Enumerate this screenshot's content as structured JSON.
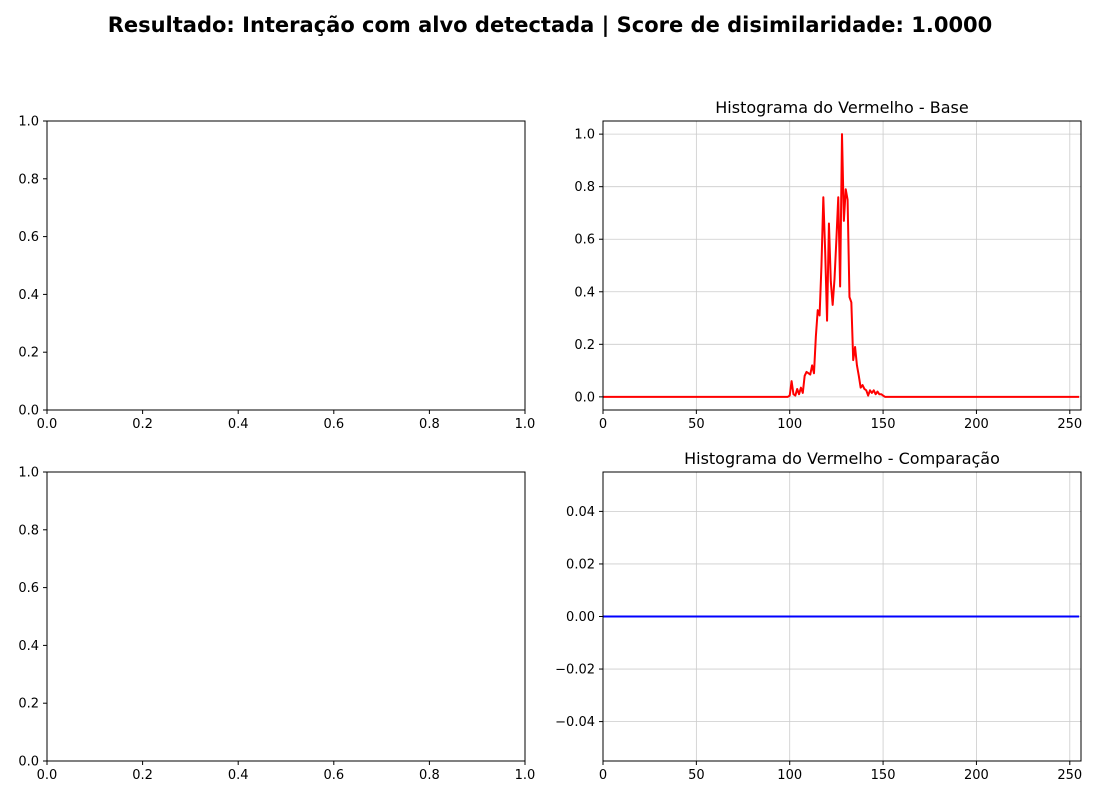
{
  "figure": {
    "suptitle": "Resultado: Interação com alvo detectada | Score de disimilaridade: 1.0000"
  },
  "chart_data": [
    {
      "type": "line",
      "title": "",
      "xlabel": "",
      "ylabel": "",
      "xlim": [
        0,
        1
      ],
      "ylim": [
        0,
        1
      ],
      "xticks": [
        "0.0",
        "0.2",
        "0.4",
        "0.6",
        "0.8",
        "1.0"
      ],
      "yticks": [
        "0.0",
        "0.2",
        "0.4",
        "0.6",
        "0.8",
        "1.0"
      ],
      "grid": false,
      "series": []
    },
    {
      "type": "line",
      "title": "Histograma do Vermelho - Base",
      "xlabel": "",
      "ylabel": "",
      "xlim": [
        0,
        256
      ],
      "ylim": [
        -0.05,
        1.05
      ],
      "xticks": [
        "0",
        "50",
        "100",
        "150",
        "200",
        "250"
      ],
      "yticks": [
        "0.0",
        "0.2",
        "0.4",
        "0.6",
        "0.8",
        "1.0"
      ],
      "grid": true,
      "series": [
        {
          "color": "#ff0000",
          "points": [
            [
              0,
              0
            ],
            [
              99,
              0
            ],
            [
              100,
              0.005
            ],
            [
              101,
              0.06
            ],
            [
              102,
              0.01
            ],
            [
              103,
              0.005
            ],
            [
              104,
              0.03
            ],
            [
              105,
              0.01
            ],
            [
              106,
              0.035
            ],
            [
              107,
              0.015
            ],
            [
              108,
              0.08
            ],
            [
              109,
              0.095
            ],
            [
              110,
              0.09
            ],
            [
              111,
              0.085
            ],
            [
              112,
              0.12
            ],
            [
              113,
              0.09
            ],
            [
              114,
              0.23
            ],
            [
              115,
              0.33
            ],
            [
              116,
              0.31
            ],
            [
              117,
              0.5
            ],
            [
              118,
              0.76
            ],
            [
              119,
              0.55
            ],
            [
              120,
              0.29
            ],
            [
              121,
              0.66
            ],
            [
              122,
              0.44
            ],
            [
              123,
              0.35
            ],
            [
              124,
              0.45
            ],
            [
              125,
              0.6
            ],
            [
              126,
              0.76
            ],
            [
              127,
              0.42
            ],
            [
              128,
              1.0
            ],
            [
              129,
              0.67
            ],
            [
              130,
              0.79
            ],
            [
              131,
              0.75
            ],
            [
              132,
              0.38
            ],
            [
              133,
              0.36
            ],
            [
              134,
              0.14
            ],
            [
              135,
              0.19
            ],
            [
              136,
              0.12
            ],
            [
              137,
              0.08
            ],
            [
              138,
              0.035
            ],
            [
              139,
              0.045
            ],
            [
              140,
              0.03
            ],
            [
              141,
              0.025
            ],
            [
              142,
              0.005
            ],
            [
              143,
              0.025
            ],
            [
              144,
              0.015
            ],
            [
              145,
              0.025
            ],
            [
              146,
              0.01
            ],
            [
              147,
              0.02
            ],
            [
              148,
              0.01
            ],
            [
              149,
              0.01
            ],
            [
              150,
              0.005
            ],
            [
              151,
              0
            ],
            [
              255,
              0
            ]
          ]
        }
      ]
    },
    {
      "type": "line",
      "title": "",
      "xlabel": "",
      "ylabel": "",
      "xlim": [
        0,
        1
      ],
      "ylim": [
        0,
        1
      ],
      "xticks": [
        "0.0",
        "0.2",
        "0.4",
        "0.6",
        "0.8",
        "1.0"
      ],
      "yticks": [
        "0.0",
        "0.2",
        "0.4",
        "0.6",
        "0.8",
        "1.0"
      ],
      "grid": false,
      "series": []
    },
    {
      "type": "line",
      "title": "Histograma do Vermelho - Comparação",
      "xlabel": "",
      "ylabel": "",
      "xlim": [
        0,
        256
      ],
      "ylim": [
        -0.055,
        0.055
      ],
      "xticks": [
        "0",
        "50",
        "100",
        "150",
        "200",
        "250"
      ],
      "yticks": [
        "−0.04",
        "−0.02",
        "0.00",
        "0.02",
        "0.04"
      ],
      "grid": true,
      "series": [
        {
          "color": "#0000ff",
          "points": [
            [
              0,
              0
            ],
            [
              255,
              0
            ]
          ]
        }
      ]
    }
  ]
}
